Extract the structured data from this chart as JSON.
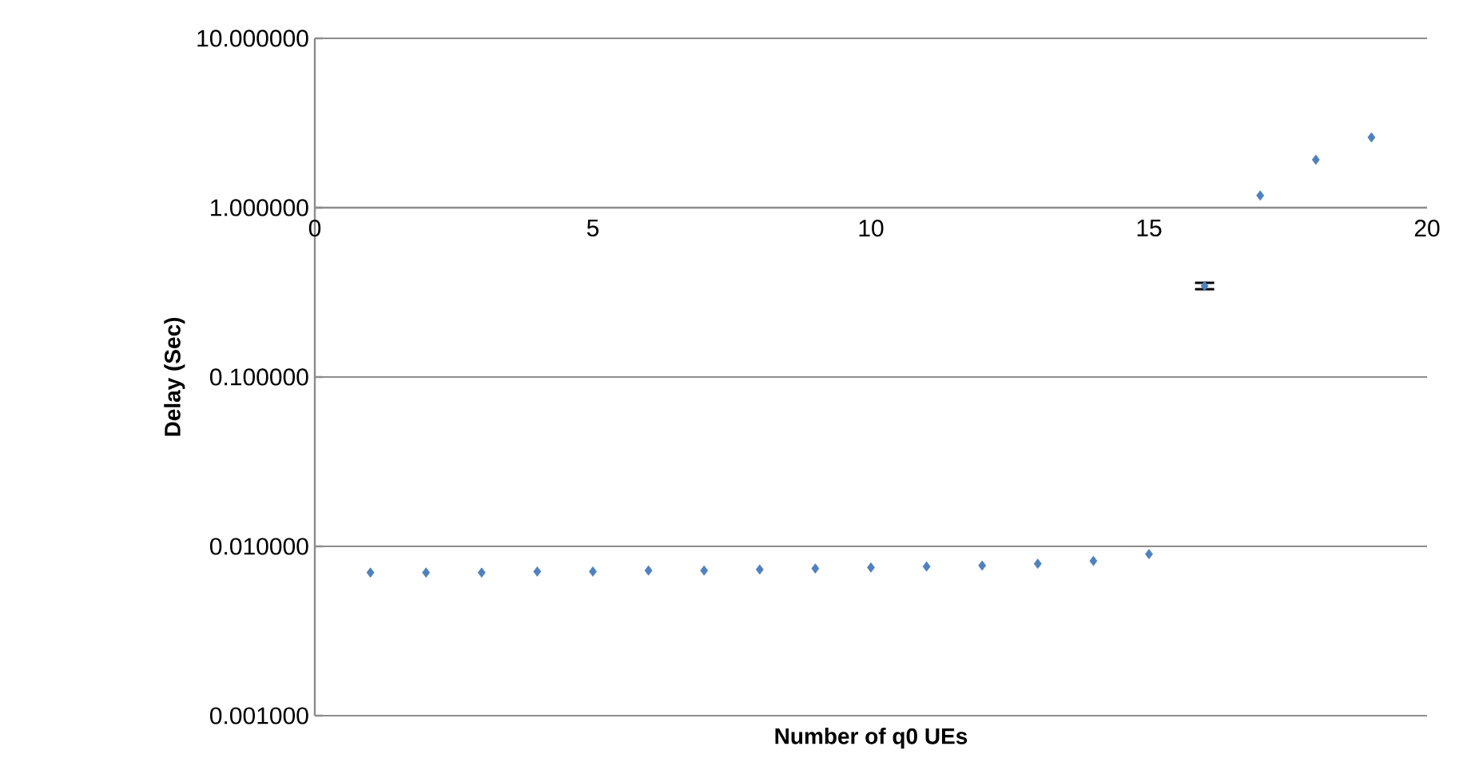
{
  "chart_data": {
    "type": "scatter",
    "xlabel": "Number of q0 UEs",
    "ylabel": "Delay (Sec)",
    "x": [
      1,
      2,
      3,
      4,
      5,
      6,
      7,
      8,
      9,
      10,
      11,
      12,
      13,
      14,
      15,
      16,
      17,
      18,
      19
    ],
    "values": [
      0.007,
      0.007,
      0.007,
      0.0071,
      0.0071,
      0.0072,
      0.0072,
      0.0073,
      0.0074,
      0.0075,
      0.0076,
      0.0077,
      0.0079,
      0.0082,
      0.009,
      0.345,
      1.18,
      1.92,
      2.6
    ],
    "errors": [
      null,
      null,
      null,
      null,
      null,
      null,
      null,
      null,
      null,
      null,
      null,
      null,
      null,
      null,
      null,
      0.015,
      null,
      null,
      null
    ],
    "color": "#4f81bd",
    "marker": "diamond",
    "log": true,
    "grid": "y",
    "xlim": [
      0,
      20
    ],
    "xticks": [
      0,
      5,
      10,
      15,
      20
    ],
    "ylim": [
      0.001,
      10
    ],
    "yticks": [
      {
        "value": 0.001,
        "label": "0.001000"
      },
      {
        "value": 0.01,
        "label": "0.010000"
      },
      {
        "value": 0.1,
        "label": "0.100000"
      },
      {
        "value": 1,
        "label": "1.000000"
      },
      {
        "value": 10,
        "label": "10.000000"
      }
    ]
  }
}
